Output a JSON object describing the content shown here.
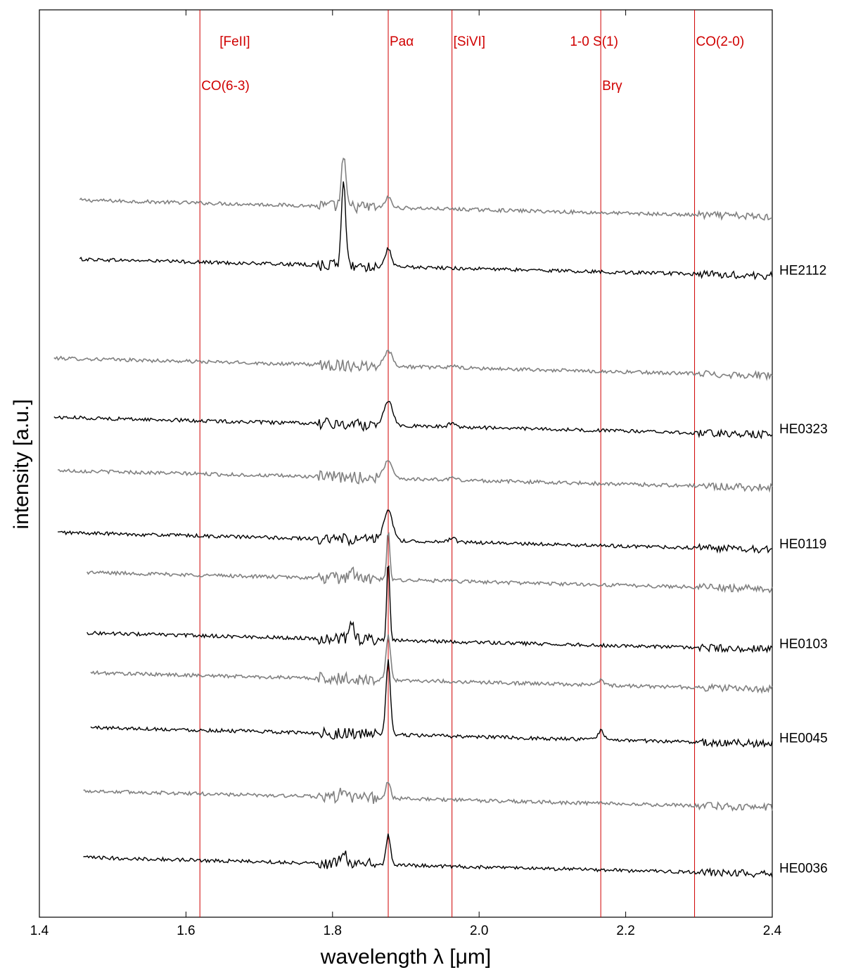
{
  "chart_data": {
    "type": "line",
    "title": "",
    "xlabel": "wavelength λ [μm]",
    "ylabel": "intensity [a.u.]",
    "xlim": [
      1.4,
      2.4
    ],
    "x_ticks": [
      "1.4",
      "1.6",
      "1.8",
      "2.0",
      "2.2",
      "2.4"
    ],
    "grid": false,
    "colors": {
      "obs": "#000000",
      "model": "#808080",
      "marker": "#d00000"
    },
    "lines": [
      {
        "label": "[FeII]",
        "x": 1.644,
        "row": 1
      },
      {
        "label": "CO(6-3)",
        "x": 1.619,
        "row": 2
      },
      {
        "label": "Paα",
        "x": 1.876,
        "row": 1
      },
      {
        "label": "[SiVI]",
        "x": 1.963,
        "row": 1
      },
      {
        "label": "1-0 S(1)",
        "x": 2.122,
        "row": 1
      },
      {
        "label": "Brγ",
        "x": 2.166,
        "row": 2
      },
      {
        "label": "CO(2-0)",
        "x": 2.294,
        "row": 1
      }
    ],
    "markers_x": [
      1.619,
      1.876,
      1.963,
      2.166,
      2.294
    ],
    "objects": [
      {
        "name": "HE2112",
        "model_offset": 4.55,
        "obs_offset": 4.15,
        "x_start": 1.455,
        "features": [
          {
            "x": 1.815,
            "a": 0.55,
            "w": 0.003
          },
          {
            "x": 1.876,
            "a": 0.12,
            "w": 0.004
          }
        ]
      },
      {
        "name": "HE0323",
        "model_offset": 3.48,
        "obs_offset": 3.08,
        "x_start": 1.42,
        "features": [
          {
            "x": 1.876,
            "a": 0.17,
            "w": 0.006
          },
          {
            "x": 1.963,
            "a": 0.03,
            "w": 0.004
          }
        ]
      },
      {
        "name": "HE0119",
        "model_offset": 2.72,
        "obs_offset": 2.3,
        "x_start": 1.425,
        "features": [
          {
            "x": 1.876,
            "a": 0.2,
            "w": 0.006
          },
          {
            "x": 1.963,
            "a": 0.03,
            "w": 0.004
          }
        ]
      },
      {
        "name": "HE0103",
        "model_offset": 2.03,
        "obs_offset": 1.62,
        "x_start": 1.465,
        "features": [
          {
            "x": 1.876,
            "a": 0.55,
            "w": 0.002
          },
          {
            "x": 1.826,
            "a": 0.1,
            "w": 0.004
          }
        ]
      },
      {
        "name": "HE0045",
        "model_offset": 1.35,
        "obs_offset": 0.98,
        "x_start": 1.47,
        "features": [
          {
            "x": 1.876,
            "a": 0.5,
            "w": 0.003
          },
          {
            "x": 2.166,
            "a": 0.06,
            "w": 0.004
          }
        ]
      },
      {
        "name": "HE0036",
        "model_offset": 0.55,
        "obs_offset": 0.1,
        "x_start": 1.46,
        "features": [
          {
            "x": 1.876,
            "a": 0.2,
            "w": 0.003
          },
          {
            "x": 1.815,
            "a": 0.08,
            "w": 0.004
          }
        ]
      }
    ]
  }
}
